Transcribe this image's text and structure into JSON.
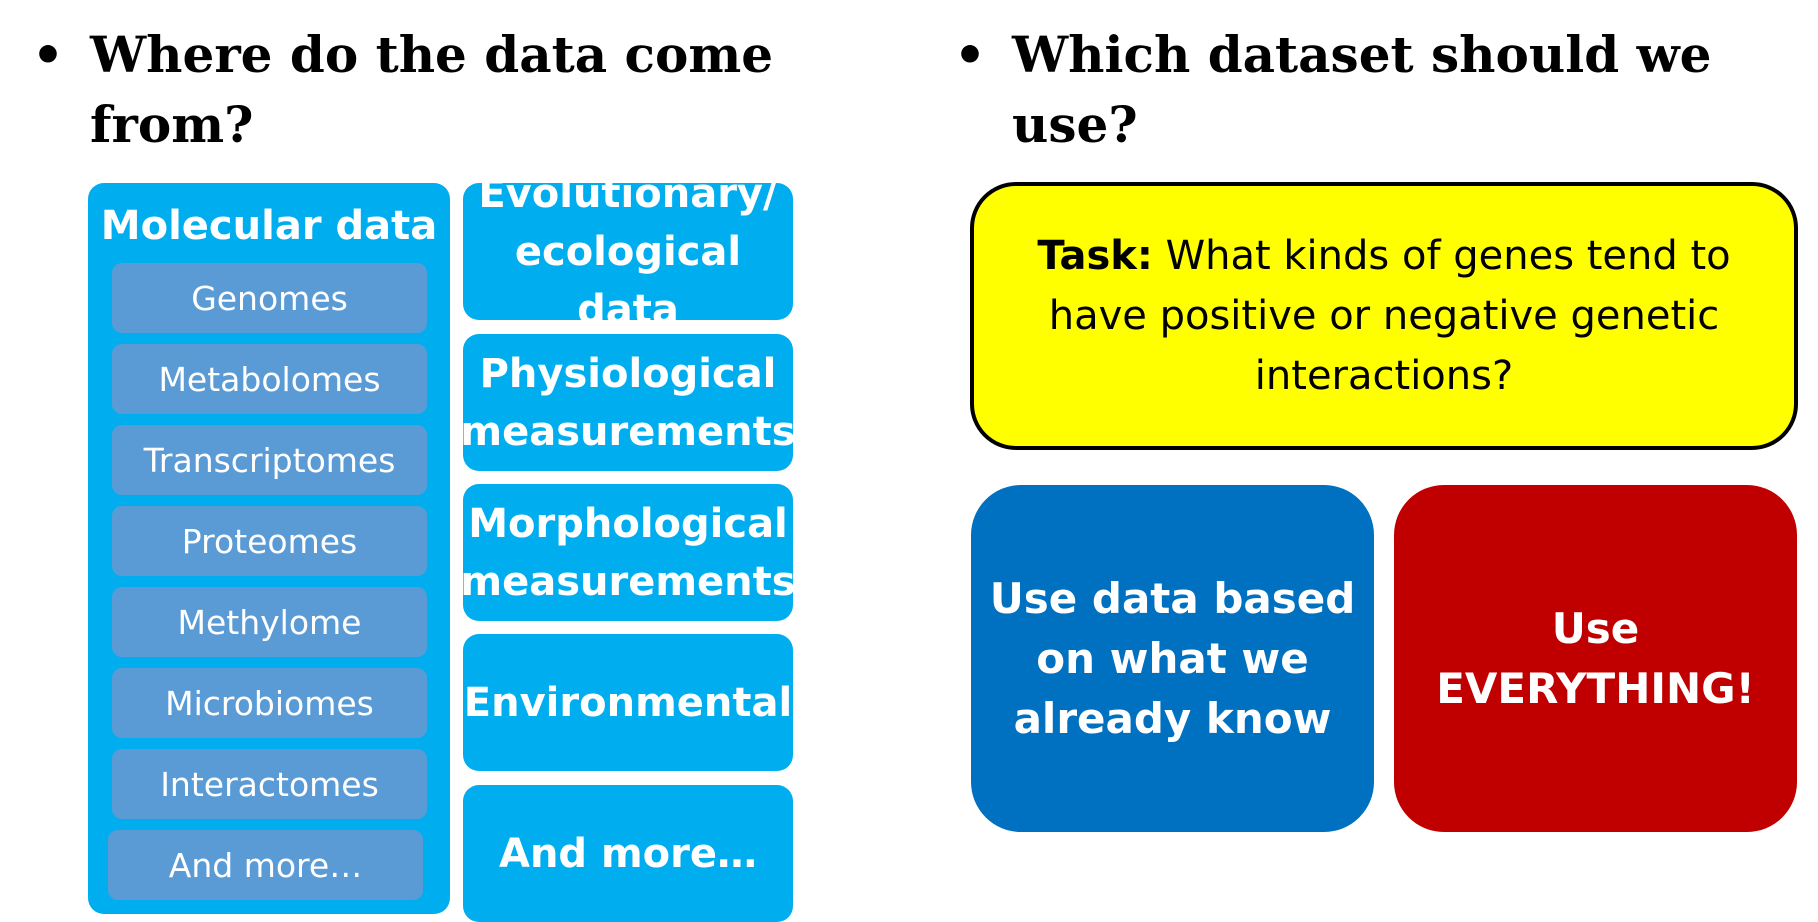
{
  "left": {
    "bullet": "•",
    "heading": [
      "Where do the data come",
      "from?"
    ],
    "molecular_panel": {
      "title": "Molecular data",
      "items": [
        "Genomes",
        "Metabolomes",
        "Transcriptomes",
        "Proteomes",
        "Methylome",
        "Microbiomes",
        "Interactomes",
        "And more…"
      ]
    },
    "categories": [
      "Evolutionary/\necological data",
      "Physiological\nmeasurements",
      "Morphological\nmeasurements",
      "Environmental",
      "And more…"
    ]
  },
  "right": {
    "bullet": "•",
    "heading": [
      "Which dataset should we",
      "use?"
    ],
    "task": {
      "label": "Task:",
      "text": "What kinds of genes tend to have positive or negative genetic interactions?"
    },
    "options": [
      "Use data based\non what we\nalready know",
      "Use\nEVERYTHING!"
    ]
  },
  "colors": {
    "panel_cyan": "#00aeef",
    "sub_item_blue": "#5b9bd5",
    "task_yellow": "#ffff00",
    "option_blue": "#0070c0",
    "option_red": "#c00000"
  }
}
